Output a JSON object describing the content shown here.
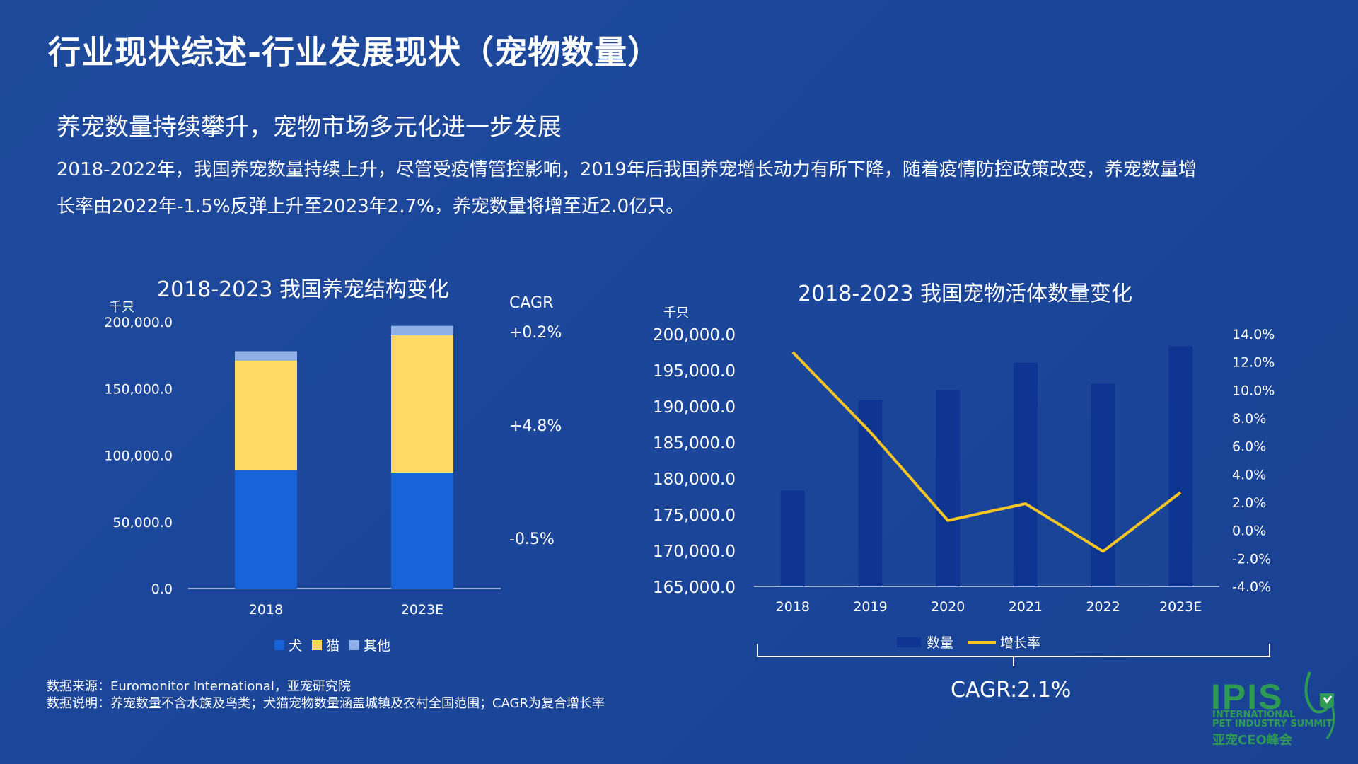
{
  "header": {
    "title": "行业现状综述-行业发展现状（宠物数量）",
    "subtitle": "养宠数量持续攀升，宠物市场多元化进一步发展",
    "body_line1": "2018-2022年，我国养宠数量持续上升，尽管受疫情管控影响，2019年后我国养宠增长动力有所下降，随着疫情防控政策改变，养宠数量增",
    "body_line2": "长率由2022年-1.5%反弹上升至2023年2.7%，养宠数量将增至近2.0亿只。"
  },
  "left_chart": {
    "unit": "千只",
    "cagr_heading": "CAGR",
    "cagr_values": [
      "+0.2%",
      "+4.8%",
      "-0.5%"
    ],
    "y_ticks": [
      "200,000.0",
      "150,000.0",
      "100,000.0",
      "50,000.0",
      "0.0"
    ],
    "legend": [
      "犬",
      "猫",
      "其他"
    ]
  },
  "right_chart": {
    "unit": "千只",
    "y_ticks": [
      "200,000.0",
      "195,000.0",
      "190,000.0",
      "185,000.0",
      "180,000.0",
      "175,000.0",
      "170,000.0",
      "165,000.0"
    ],
    "y2_ticks": [
      "14.0%",
      "12.0%",
      "10.0%",
      "8.0%",
      "6.0%",
      "4.0%",
      "2.0%",
      "0.0%",
      "-2.0%",
      "-4.0%"
    ],
    "legend": [
      "数量",
      "增长率"
    ],
    "cagr": "CAGR:2.1%"
  },
  "chart_data": [
    {
      "type": "bar",
      "stacked": true,
      "title": "2018-2023 我国养宠结构变化",
      "ylabel": "千只",
      "ylim": [
        0,
        200000
      ],
      "categories": [
        "2018",
        "2023E"
      ],
      "series": [
        {
          "name": "犬",
          "values": [
            89000,
            87000
          ],
          "color": "#1763d8"
        },
        {
          "name": "猫",
          "values": [
            82000,
            103000
          ],
          "color": "#ffd966"
        },
        {
          "name": "其他",
          "values": [
            7000,
            7000
          ],
          "color": "#8eb0e6"
        }
      ]
    },
    {
      "type": "bar+line",
      "title": "2018-2023 我国宠物活体数量变化",
      "ylabel": "千只",
      "ylim": [
        165000,
        200000
      ],
      "y2lim": [
        -4.0,
        14.0
      ],
      "categories": [
        "2018",
        "2019",
        "2020",
        "2021",
        "2022",
        "2023E"
      ],
      "series": [
        {
          "name": "数量",
          "type": "bar",
          "values": [
            178300,
            190800,
            192200,
            196000,
            193100,
            198300
          ],
          "color": "#0f3592"
        },
        {
          "name": "增长率",
          "type": "line",
          "axis": "right",
          "values": [
            12.7,
            7.0,
            0.7,
            1.9,
            -1.5,
            2.7
          ],
          "color": "#f5c425"
        }
      ]
    }
  ],
  "footer": {
    "source": "数据来源：Euromonitor International，亚宠研究院",
    "note": "数据说明：养宠数量不含水族及鸟类；犬猫宠物数量涵盖城镇及农村全国范围；CAGR为复合增长率"
  },
  "logo": {
    "name": "IPIS",
    "line1": "INTERNATIONAL",
    "line2": "PET INDUSTRY SUMMIT",
    "cn": "亚宠CEO峰会"
  },
  "colors": {
    "background": "#1d4597",
    "dog": "#1763d8",
    "cat": "#ffd966",
    "other": "#8eb0e6",
    "bar": "#0f3592",
    "line": "#f5c425",
    "logo": "#2e9a53"
  }
}
